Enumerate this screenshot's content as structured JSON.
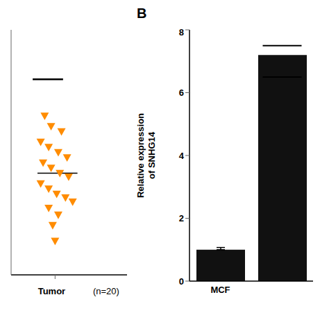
{
  "chart_data": [
    {
      "type": "scatter",
      "xlabel": "Tumor",
      "annotations": [
        "(n=20)"
      ],
      "x": [
        -0.13,
        -0.05,
        0.08,
        -0.18,
        -0.08,
        0.04,
        0.15,
        -0.15,
        -0.05,
        0.06,
        0.17,
        -0.18,
        -0.08,
        0.02,
        0.13,
        0.22,
        -0.08,
        0.04,
        -0.03,
        0.0
      ],
      "values": [
        3.85,
        3.65,
        3.55,
        3.35,
        3.25,
        3.15,
        3.05,
        2.95,
        2.85,
        2.75,
        2.68,
        2.55,
        2.45,
        2.35,
        2.28,
        2.2,
        2.08,
        1.95,
        1.75,
        1.45
      ],
      "color": "#FF8C00",
      "marker": "triangle_down",
      "xlim": [
        -0.55,
        0.9
      ],
      "ylim": [
        0.8,
        5.5
      ],
      "xticks": [
        0
      ],
      "yticks": [],
      "tick_labels": false,
      "reference_lines": [
        {
          "y": 2.75,
          "x": [
            -0.22,
            0.28
          ]
        },
        {
          "y": 4.55,
          "x": [
            -0.28,
            0.1
          ]
        }
      ]
    },
    {
      "type": "bar",
      "panel_label": "B",
      "ylabel": "Relative expression\nof SNHG14",
      "categories": [
        "MCF",
        null
      ],
      "values": [
        1.0,
        7.2
      ],
      "error_bars": [
        0.07,
        null
      ],
      "significance_lines": [
        [],
        [
          7.5,
          6.5
        ]
      ],
      "color": "#111111",
      "ylim": [
        0,
        8
      ],
      "yticks": [
        0,
        2,
        4,
        6,
        8
      ]
    }
  ]
}
